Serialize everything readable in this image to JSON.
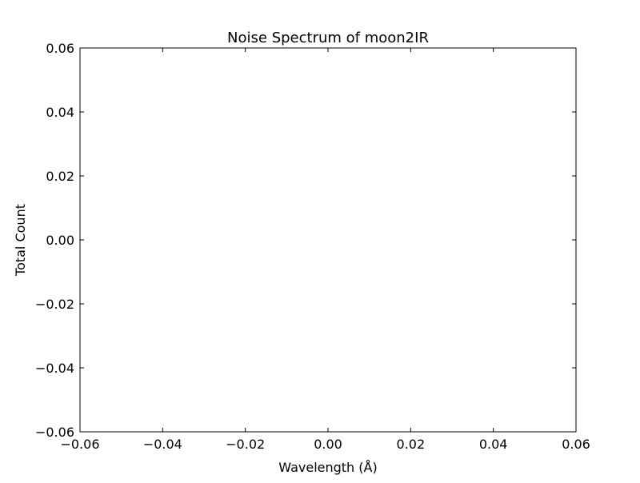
{
  "chart_data": {
    "type": "line",
    "title": "Noise Spectrum of moon2IR",
    "xlabel": "Wavelength (Å)",
    "ylabel": "Total Count",
    "xlim": [
      -0.06,
      0.06
    ],
    "ylim": [
      -0.06,
      0.06
    ],
    "x_ticks": [
      -0.06,
      -0.04,
      -0.02,
      0.0,
      0.02,
      0.04,
      0.06
    ],
    "y_ticks": [
      -0.06,
      -0.04,
      -0.02,
      0.0,
      0.02,
      0.04,
      0.06
    ],
    "x_tick_labels": [
      "−0.06",
      "−0.04",
      "−0.02",
      "0.00",
      "0.02",
      "0.04",
      "0.06"
    ],
    "y_tick_labels": [
      "−0.06",
      "−0.04",
      "−0.02",
      "0.00",
      "0.02",
      "0.04",
      "0.06"
    ],
    "series": [],
    "grid": false,
    "legend": "none",
    "colors": {
      "axes": "#000000",
      "background": "#ffffff"
    }
  }
}
